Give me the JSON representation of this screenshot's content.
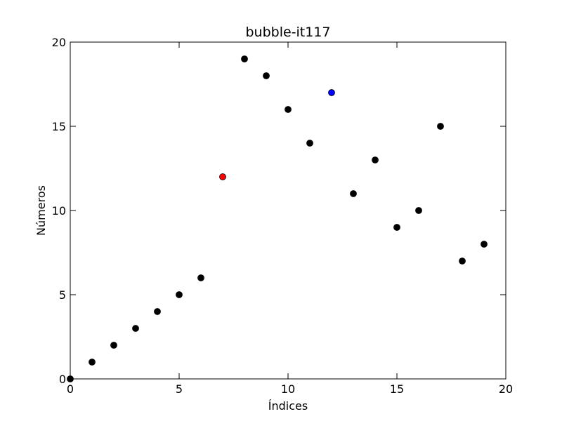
{
  "chart_data": {
    "type": "scatter",
    "title": "bubble-it117",
    "xlabel": "Índices",
    "ylabel": "Números",
    "xlim": [
      0,
      20
    ],
    "ylim": [
      0,
      20
    ],
    "xticks": [
      0,
      5,
      10,
      15,
      20
    ],
    "yticks": [
      0,
      5,
      10,
      15,
      20
    ],
    "grid": false,
    "default_color": "#000000",
    "points": [
      {
        "x": 0,
        "y": 0,
        "color": "#000000"
      },
      {
        "x": 1,
        "y": 1,
        "color": "#000000"
      },
      {
        "x": 2,
        "y": 2,
        "color": "#000000"
      },
      {
        "x": 3,
        "y": 3,
        "color": "#000000"
      },
      {
        "x": 4,
        "y": 4,
        "color": "#000000"
      },
      {
        "x": 5,
        "y": 5,
        "color": "#000000"
      },
      {
        "x": 6,
        "y": 6,
        "color": "#000000"
      },
      {
        "x": 7,
        "y": 12,
        "color": "#ff0000"
      },
      {
        "x": 8,
        "y": 19,
        "color": "#000000"
      },
      {
        "x": 9,
        "y": 18,
        "color": "#000000"
      },
      {
        "x": 10,
        "y": 16,
        "color": "#000000"
      },
      {
        "x": 11,
        "y": 14,
        "color": "#000000"
      },
      {
        "x": 12,
        "y": 17,
        "color": "#0000ff"
      },
      {
        "x": 13,
        "y": 11,
        "color": "#000000"
      },
      {
        "x": 14,
        "y": 13,
        "color": "#000000"
      },
      {
        "x": 15,
        "y": 9,
        "color": "#000000"
      },
      {
        "x": 16,
        "y": 10,
        "color": "#000000"
      },
      {
        "x": 17,
        "y": 15,
        "color": "#000000"
      },
      {
        "x": 18,
        "y": 7,
        "color": "#000000"
      },
      {
        "x": 19,
        "y": 8,
        "color": "#000000"
      }
    ]
  }
}
